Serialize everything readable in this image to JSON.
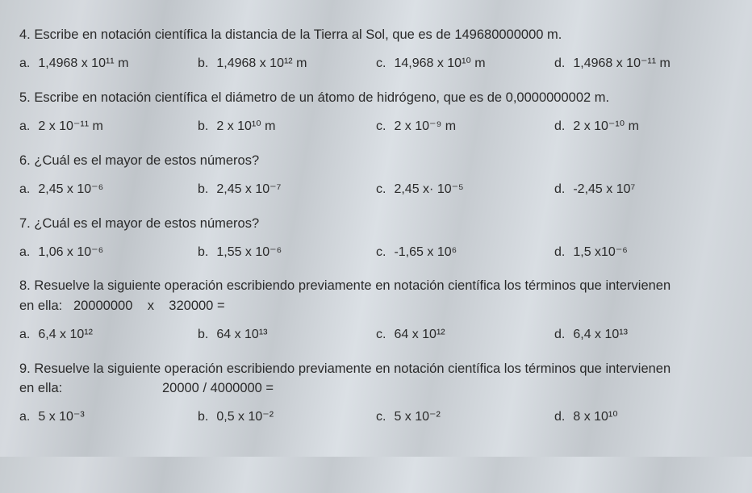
{
  "questions": [
    {
      "num": "4.",
      "text": "Escribe en notación científica la distancia de la Tierra al Sol, que es de 149680000000 m.",
      "opts": {
        "a": "1,4968 x 10¹¹ m",
        "b": "1,4968 x 10¹² m",
        "c": "14,968 x 10¹⁰ m",
        "d": "1,4968 x 10⁻¹¹ m"
      }
    },
    {
      "num": "5.",
      "text": "Escribe en notación científica el diámetro de un átomo de hidrógeno, que es de 0,0000000002 m.",
      "opts": {
        "a": "2 x 10⁻¹¹ m",
        "b": "2 x 10¹⁰ m",
        "c": "2 x 10⁻⁹ m",
        "d": "2 x 10⁻¹⁰ m"
      }
    },
    {
      "num": "6.",
      "text": "¿Cuál es el mayor de estos números?",
      "opts": {
        "a": "2,45 x 10⁻⁶",
        "b": "2,45 x 10⁻⁷",
        "c": "2,45 x· 10⁻⁵",
        "d": "-2,45 x 10⁷"
      }
    },
    {
      "num": "7.",
      "text": "¿Cuál es el mayor de estos números?",
      "opts": {
        "a": "1,06 x 10⁻⁶",
        "b": "1,55 x 10⁻⁶",
        "c": "-1,65 x 10⁶",
        "d": "1,5 x10⁻⁶"
      }
    },
    {
      "num": "8.",
      "text": "Resuelve la siguiente operación escribiendo previamente en notación científica los términos que intervienen",
      "text2": "en ella:   20000000    x    320000 =",
      "opts": {
        "a": "6,4 x 10¹²",
        "b": "64 x 10¹³",
        "c": "64 x 10¹²",
        "d": "6,4 x 10¹³"
      }
    },
    {
      "num": "9.",
      "text": "Resuelve la siguiente operación escribiendo previamente en notación científica los términos que intervienen",
      "text2": "en ella:                           20000 / 4000000 =",
      "opts": {
        "a": "5 x 10⁻³",
        "b": "0,5 x 10⁻²",
        "c": "5 x 10⁻²",
        "d": "8 x 10¹⁰"
      }
    }
  ],
  "labels": {
    "a": "a.",
    "b": "b.",
    "c": "c.",
    "d": "d."
  }
}
